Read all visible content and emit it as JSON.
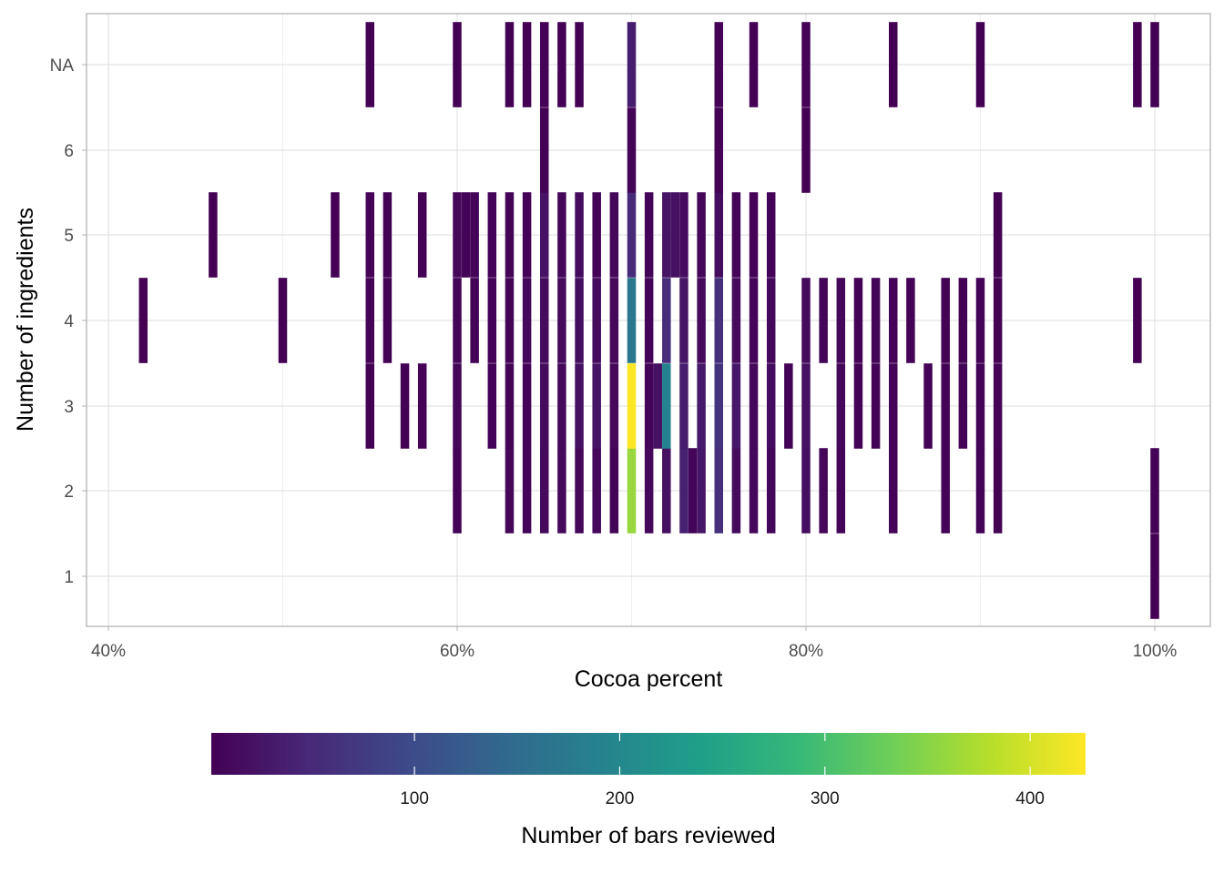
{
  "chart_data": {
    "type": "heatmap",
    "xlabel": "Cocoa percent",
    "ylabel": "Number of ingredients",
    "x_ticks": [
      {
        "value": 40,
        "label": "40%"
      },
      {
        "value": 60,
        "label": "60%"
      },
      {
        "value": 80,
        "label": "80%"
      },
      {
        "value": 100,
        "label": "100%"
      }
    ],
    "y_categories": [
      "1",
      "2",
      "3",
      "4",
      "5",
      "6",
      "NA"
    ],
    "xlim": [
      39,
      103
    ],
    "grid": true,
    "legend": {
      "title": "Number of bars reviewed",
      "position": "bottom",
      "range": [
        1,
        427
      ],
      "ticks": [
        {
          "value": 100,
          "label": "100"
        },
        {
          "value": 200,
          "label": "200"
        },
        {
          "value": 300,
          "label": "300"
        },
        {
          "value": 400,
          "label": "400"
        }
      ],
      "palette": [
        "#440154",
        "#482878",
        "#3e4989",
        "#31688e",
        "#26828e",
        "#1f9e89",
        "#35b779",
        "#6ece58",
        "#b5de2b",
        "#fde725"
      ]
    },
    "cells": [
      {
        "x": 100,
        "y": "1",
        "count": 1
      },
      {
        "x": 60,
        "y": "2",
        "count": 4
      },
      {
        "x": 63,
        "y": "2",
        "count": 8
      },
      {
        "x": 64,
        "y": "2",
        "count": 6
      },
      {
        "x": 65,
        "y": "2",
        "count": 12
      },
      {
        "x": 66,
        "y": "2",
        "count": 10
      },
      {
        "x": 67,
        "y": "2",
        "count": 8
      },
      {
        "x": 68,
        "y": "2",
        "count": 10
      },
      {
        "x": 69,
        "y": "2",
        "count": 6
      },
      {
        "x": 70,
        "y": "2",
        "count": 360
      },
      {
        "x": 71,
        "y": "2",
        "count": 10
      },
      {
        "x": 72,
        "y": "2",
        "count": 20
      },
      {
        "x": 73,
        "y": "2",
        "count": 40
      },
      {
        "x": 73.5,
        "y": "2",
        "count": 6
      },
      {
        "x": 74,
        "y": "2",
        "count": 28
      },
      {
        "x": 75,
        "y": "2",
        "count": 60
      },
      {
        "x": 76,
        "y": "2",
        "count": 14
      },
      {
        "x": 77,
        "y": "2",
        "count": 10
      },
      {
        "x": 78,
        "y": "2",
        "count": 8
      },
      {
        "x": 80,
        "y": "2",
        "count": 18
      },
      {
        "x": 81,
        "y": "2",
        "count": 8
      },
      {
        "x": 82,
        "y": "2",
        "count": 6
      },
      {
        "x": 85,
        "y": "2",
        "count": 5
      },
      {
        "x": 88,
        "y": "2",
        "count": 3
      },
      {
        "x": 90,
        "y": "2",
        "count": 3
      },
      {
        "x": 91,
        "y": "2",
        "count": 2
      },
      {
        "x": 100,
        "y": "2",
        "count": 4
      },
      {
        "x": 55,
        "y": "3",
        "count": 2
      },
      {
        "x": 57,
        "y": "3",
        "count": 2
      },
      {
        "x": 58,
        "y": "3",
        "count": 3
      },
      {
        "x": 60,
        "y": "3",
        "count": 8
      },
      {
        "x": 62,
        "y": "3",
        "count": 4
      },
      {
        "x": 63,
        "y": "3",
        "count": 6
      },
      {
        "x": 64,
        "y": "3",
        "count": 6
      },
      {
        "x": 65,
        "y": "3",
        "count": 14
      },
      {
        "x": 66,
        "y": "3",
        "count": 10
      },
      {
        "x": 67,
        "y": "3",
        "count": 20
      },
      {
        "x": 68,
        "y": "3",
        "count": 25
      },
      {
        "x": 69,
        "y": "3",
        "count": 10
      },
      {
        "x": 70,
        "y": "3",
        "count": 427
      },
      {
        "x": 71,
        "y": "3",
        "count": 6
      },
      {
        "x": 71.5,
        "y": "3",
        "count": 20
      },
      {
        "x": 72,
        "y": "3",
        "count": 190
      },
      {
        "x": 73,
        "y": "3",
        "count": 36
      },
      {
        "x": 74,
        "y": "3",
        "count": 30
      },
      {
        "x": 75,
        "y": "3",
        "count": 65
      },
      {
        "x": 76,
        "y": "3",
        "count": 28
      },
      {
        "x": 77,
        "y": "3",
        "count": 10
      },
      {
        "x": 78,
        "y": "3",
        "count": 16
      },
      {
        "x": 79,
        "y": "3",
        "count": 4
      },
      {
        "x": 80,
        "y": "3",
        "count": 20
      },
      {
        "x": 82,
        "y": "3",
        "count": 8
      },
      {
        "x": 83,
        "y": "3",
        "count": 4
      },
      {
        "x": 84,
        "y": "3",
        "count": 4
      },
      {
        "x": 85,
        "y": "3",
        "count": 6
      },
      {
        "x": 87,
        "y": "3",
        "count": 3
      },
      {
        "x": 88,
        "y": "3",
        "count": 3
      },
      {
        "x": 89,
        "y": "3",
        "count": 4
      },
      {
        "x": 90,
        "y": "3",
        "count": 4
      },
      {
        "x": 91,
        "y": "3",
        "count": 3
      },
      {
        "x": 42,
        "y": "4",
        "count": 1
      },
      {
        "x": 50,
        "y": "4",
        "count": 1
      },
      {
        "x": 55,
        "y": "4",
        "count": 3
      },
      {
        "x": 56,
        "y": "4",
        "count": 2
      },
      {
        "x": 60,
        "y": "4",
        "count": 6
      },
      {
        "x": 61,
        "y": "4",
        "count": 3
      },
      {
        "x": 62,
        "y": "4",
        "count": 4
      },
      {
        "x": 63,
        "y": "4",
        "count": 6
      },
      {
        "x": 64,
        "y": "4",
        "count": 8
      },
      {
        "x": 65,
        "y": "4",
        "count": 14
      },
      {
        "x": 66,
        "y": "4",
        "count": 12
      },
      {
        "x": 67,
        "y": "4",
        "count": 18
      },
      {
        "x": 68,
        "y": "4",
        "count": 14
      },
      {
        "x": 69,
        "y": "4",
        "count": 10
      },
      {
        "x": 70,
        "y": "4",
        "count": 170
      },
      {
        "x": 71,
        "y": "4",
        "count": 6
      },
      {
        "x": 72,
        "y": "4",
        "count": 55
      },
      {
        "x": 73,
        "y": "4",
        "count": 25
      },
      {
        "x": 74,
        "y": "4",
        "count": 12
      },
      {
        "x": 75,
        "y": "4",
        "count": 60
      },
      {
        "x": 76,
        "y": "4",
        "count": 14
      },
      {
        "x": 77,
        "y": "4",
        "count": 6
      },
      {
        "x": 78,
        "y": "4",
        "count": 10
      },
      {
        "x": 80,
        "y": "4",
        "count": 14
      },
      {
        "x": 81,
        "y": "4",
        "count": 6
      },
      {
        "x": 82,
        "y": "4",
        "count": 8
      },
      {
        "x": 83,
        "y": "4",
        "count": 4
      },
      {
        "x": 84,
        "y": "4",
        "count": 6
      },
      {
        "x": 85,
        "y": "4",
        "count": 6
      },
      {
        "x": 86,
        "y": "4",
        "count": 3
      },
      {
        "x": 88,
        "y": "4",
        "count": 2
      },
      {
        "x": 89,
        "y": "4",
        "count": 2
      },
      {
        "x": 90,
        "y": "4",
        "count": 4
      },
      {
        "x": 91,
        "y": "4",
        "count": 2
      },
      {
        "x": 99,
        "y": "4",
        "count": 1
      },
      {
        "x": 46,
        "y": "5",
        "count": 1
      },
      {
        "x": 53,
        "y": "5",
        "count": 1
      },
      {
        "x": 55,
        "y": "5",
        "count": 4
      },
      {
        "x": 56,
        "y": "5",
        "count": 2
      },
      {
        "x": 58,
        "y": "5",
        "count": 2
      },
      {
        "x": 60,
        "y": "5",
        "count": 8
      },
      {
        "x": 60.5,
        "y": "5",
        "count": 6
      },
      {
        "x": 61,
        "y": "5",
        "count": 5
      },
      {
        "x": 62,
        "y": "5",
        "count": 3
      },
      {
        "x": 63,
        "y": "5",
        "count": 6
      },
      {
        "x": 64,
        "y": "5",
        "count": 4
      },
      {
        "x": 65,
        "y": "5",
        "count": 22
      },
      {
        "x": 66,
        "y": "5",
        "count": 8
      },
      {
        "x": 67,
        "y": "5",
        "count": 14
      },
      {
        "x": 68,
        "y": "5",
        "count": 6
      },
      {
        "x": 69,
        "y": "5",
        "count": 8
      },
      {
        "x": 70,
        "y": "5",
        "count": 52
      },
      {
        "x": 71,
        "y": "5",
        "count": 6
      },
      {
        "x": 72,
        "y": "5",
        "count": 24
      },
      {
        "x": 72.5,
        "y": "5",
        "count": 20
      },
      {
        "x": 73,
        "y": "5",
        "count": 14
      },
      {
        "x": 74,
        "y": "5",
        "count": 8
      },
      {
        "x": 75,
        "y": "5",
        "count": 16
      },
      {
        "x": 76,
        "y": "5",
        "count": 6
      },
      {
        "x": 77,
        "y": "5",
        "count": 4
      },
      {
        "x": 78,
        "y": "5",
        "count": 3
      },
      {
        "x": 91,
        "y": "5",
        "count": 1
      },
      {
        "x": 65,
        "y": "6",
        "count": 2
      },
      {
        "x": 70,
        "y": "6",
        "count": 5
      },
      {
        "x": 75,
        "y": "6",
        "count": 3
      },
      {
        "x": 80,
        "y": "6",
        "count": 2
      },
      {
        "x": 55,
        "y": "NA",
        "count": 2
      },
      {
        "x": 60,
        "y": "NA",
        "count": 2
      },
      {
        "x": 63,
        "y": "NA",
        "count": 2
      },
      {
        "x": 64,
        "y": "NA",
        "count": 1
      },
      {
        "x": 65,
        "y": "NA",
        "count": 3
      },
      {
        "x": 66,
        "y": "NA",
        "count": 2
      },
      {
        "x": 67,
        "y": "NA",
        "count": 2
      },
      {
        "x": 70,
        "y": "NA",
        "count": 35
      },
      {
        "x": 75,
        "y": "NA",
        "count": 4
      },
      {
        "x": 77,
        "y": "NA",
        "count": 2
      },
      {
        "x": 80,
        "y": "NA",
        "count": 3
      },
      {
        "x": 85,
        "y": "NA",
        "count": 1
      },
      {
        "x": 90,
        "y": "NA",
        "count": 1
      },
      {
        "x": 99,
        "y": "NA",
        "count": 1
      },
      {
        "x": 100,
        "y": "NA",
        "count": 2
      }
    ]
  }
}
